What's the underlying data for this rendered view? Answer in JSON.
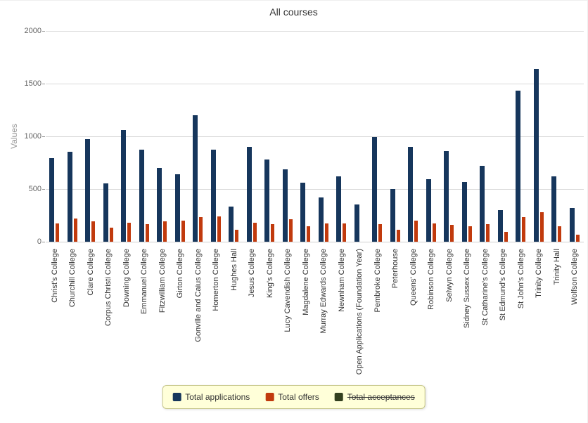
{
  "chart_data": {
    "type": "bar",
    "title": "All courses",
    "ylabel": "Values",
    "xlabel": "",
    "ylim": [
      0,
      2000
    ],
    "yticks": [
      0,
      500,
      1000,
      1500,
      2000
    ],
    "grid": true,
    "legend_position": "bottom",
    "legend_background": "#ffffd9",
    "legend_border": "#c6c68a",
    "categories": [
      "Christ's College",
      "Churchill College",
      "Clare College",
      "Corpus Christi College",
      "Downing College",
      "Emmanuel College",
      "Fitzwilliam College",
      "Girton College",
      "Gonville and Caius College",
      "Homerton College",
      "Hughes Hall",
      "Jesus College",
      "King's College",
      "Lucy Cavendish College",
      "Magdalene College",
      "Murray Edwards College",
      "Newnham College",
      "Open Applications (Foundation Year)",
      "Pembroke College",
      "Peterhouse",
      "Queens' College",
      "Robinson College",
      "Selwyn College",
      "Sidney Sussex College",
      "St Catharine's College",
      "St Edmund's College",
      "St John's College",
      "Trinity College",
      "Trinity Hall",
      "Wolfson College"
    ],
    "series": [
      {
        "name": "Total applications",
        "color": "#16365c",
        "hidden": false,
        "values": [
          790,
          850,
          970,
          555,
          1060,
          870,
          700,
          640,
          1200,
          870,
          330,
          900,
          780,
          690,
          560,
          420,
          620,
          350,
          990,
          500,
          900,
          590,
          860,
          570,
          720,
          300,
          1430,
          1640,
          620,
          320
        ]
      },
      {
        "name": "Total offers",
        "color": "#c13a0d",
        "hidden": false,
        "values": [
          170,
          220,
          190,
          130,
          180,
          165,
          195,
          200,
          230,
          240,
          110,
          180,
          165,
          210,
          145,
          175,
          170,
          0,
          165,
          115,
          200,
          170,
          160,
          145,
          165,
          90,
          230,
          280,
          145,
          65
        ]
      },
      {
        "name": "Total acceptances",
        "color": "#33401f",
        "hidden": true,
        "values": [
          0,
          0,
          0,
          0,
          0,
          0,
          0,
          0,
          0,
          0,
          0,
          0,
          0,
          0,
          0,
          0,
          0,
          0,
          0,
          0,
          0,
          0,
          0,
          0,
          0,
          0,
          0,
          0,
          0,
          0
        ]
      }
    ]
  }
}
